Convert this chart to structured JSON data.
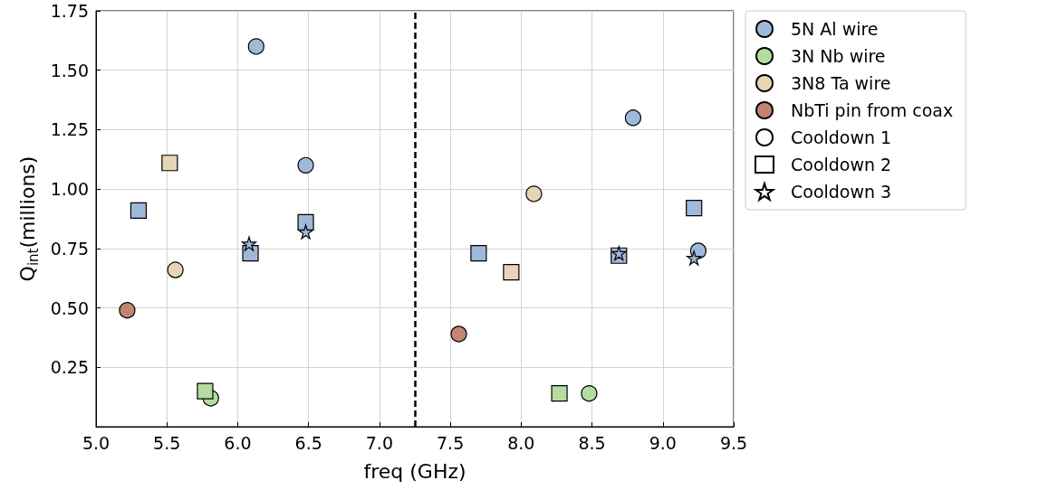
{
  "chart_data": {
    "type": "scatter",
    "xlabel": "freq (GHz)",
    "ylabel": "Q$_{int}$(millions)",
    "xlim": [
      5.0,
      9.5
    ],
    "xticks": [
      {
        "value": 5,
        "label": "5.0"
      },
      {
        "value": 5.5,
        "label": "5.5"
      },
      {
        "value": 6,
        "label": "6.0"
      },
      {
        "value": 6.5,
        "label": "6.5"
      },
      {
        "value": 7,
        "label": "7.0"
      },
      {
        "value": 7.5,
        "label": "7.5"
      },
      {
        "value": 8,
        "label": "8.0"
      },
      {
        "value": 8.5,
        "label": "8.5"
      },
      {
        "value": 9,
        "label": "9.0"
      },
      {
        "value": 9.5,
        "label": "9.5"
      }
    ],
    "ylim": [
      0,
      1.75
    ],
    "yticks": [
      {
        "value": 0.25,
        "label": "0.25"
      },
      {
        "value": 0.5,
        "label": "0.50"
      },
      {
        "value": 0.75,
        "label": "0.75"
      },
      {
        "value": 1,
        "label": "1.00"
      },
      {
        "value": 1.25,
        "label": "1.25"
      },
      {
        "value": 1.5,
        "label": "1.50"
      },
      {
        "value": 1.75,
        "label": "1.75"
      }
    ],
    "grid": true,
    "legend": "right",
    "ref_lines": [
      {
        "axis": "x",
        "value": 7.25,
        "color": "#000000",
        "line_style": "dashed"
      }
    ],
    "series": [
      {
        "name": "5N Al wire",
        "color": "#9fb9d8",
        "marker": "circle",
        "x": [
          6.13,
          6.48,
          8.79,
          9.25
        ],
        "values": [
          1.6,
          1.1,
          1.3,
          0.74
        ]
      },
      {
        "name": "3N Nb wire",
        "color": "#b5dca0",
        "marker": "circle",
        "x": [
          5.81,
          8.48
        ],
        "values": [
          0.12,
          0.14
        ]
      },
      {
        "name": "3N8 Ta wire",
        "color": "#e8d5b7",
        "marker": "circle",
        "x": [
          5.56,
          8.09
        ],
        "values": [
          0.66,
          0.98
        ]
      },
      {
        "name": "NbTi pin from coax",
        "color": "#c38472",
        "marker": "circle",
        "x": [
          5.22,
          7.56
        ],
        "values": [
          0.49,
          0.39
        ]
      },
      {
        "name": "Cooldown 1",
        "color": "#ffffff",
        "marker": "circle"
      },
      {
        "name": "Cooldown 2",
        "color": "#ffffff",
        "marker": "square"
      },
      {
        "name": "Cooldown 3",
        "color": "#ffffff",
        "marker": "star"
      },
      {
        "color": "#9fb9d8",
        "marker": "square",
        "x": [
          5.3,
          6.09,
          6.48,
          7.7,
          8.69,
          9.22
        ],
        "values": [
          0.91,
          0.73,
          0.86,
          0.73,
          0.72,
          0.92
        ]
      },
      {
        "color": "#9fb9d8",
        "marker": "star",
        "x": [
          6.08,
          6.48,
          8.69,
          9.22
        ],
        "values": [
          0.77,
          0.82,
          0.73,
          0.71
        ]
      },
      {
        "color": "#b5dca0",
        "marker": "square",
        "x": [
          5.77,
          8.27
        ],
        "values": [
          0.15,
          0.14
        ]
      },
      {
        "color": "#e8d5b7",
        "marker": "square",
        "x": [
          5.52,
          7.93
        ],
        "values": [
          1.11,
          0.65
        ]
      }
    ]
  }
}
